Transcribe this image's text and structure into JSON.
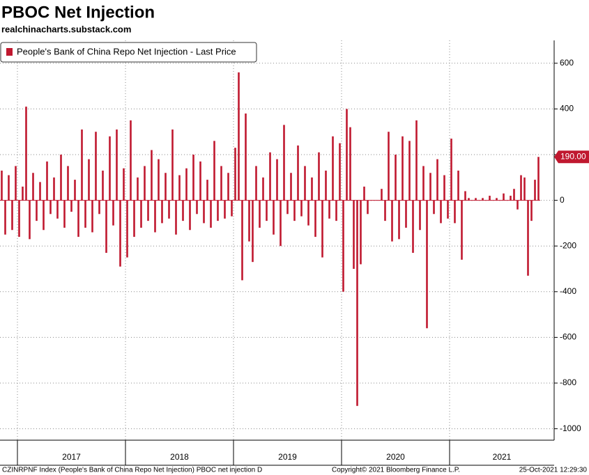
{
  "chart_data": {
    "type": "bar",
    "title": "PBOC Net Injection",
    "subtitle": "realchinacharts.substack.com",
    "series": [
      {
        "name": "People's Bank of China Repo Net Injection - Last Price",
        "color": "#c0182f",
        "values": [
          130,
          -150,
          110,
          -130,
          150,
          -160,
          60,
          410,
          -170,
          120,
          -90,
          80,
          -130,
          170,
          -60,
          100,
          -80,
          200,
          -120,
          150,
          -50,
          90,
          -160,
          310,
          -120,
          180,
          -140,
          300,
          -60,
          130,
          -230,
          280,
          -110,
          310,
          -290,
          140,
          -250,
          350,
          -160,
          100,
          -120,
          150,
          -90,
          220,
          -140,
          180,
          -100,
          120,
          -80,
          310,
          -150,
          110,
          -90,
          140,
          -130,
          200,
          -60,
          170,
          -100,
          90,
          -120,
          260,
          -90,
          150,
          -80,
          120,
          -70,
          230,
          560,
          -350,
          380,
          -180,
          -270,
          150,
          -120,
          100,
          -90,
          210,
          -150,
          180,
          -200,
          330,
          -60,
          120,
          -90,
          240,
          -70,
          150,
          -110,
          100,
          -160,
          210,
          -250,
          130,
          -80,
          280,
          -90,
          250,
          -400,
          400,
          320,
          -300,
          -900,
          -280,
          60,
          -60,
          0,
          0,
          0,
          50,
          -90,
          300,
          -180,
          200,
          -170,
          280,
          -120,
          260,
          -230,
          350,
          -130,
          150,
          -560,
          120,
          -60,
          180,
          -100,
          110,
          -80,
          270,
          -100,
          130,
          -260,
          40,
          10,
          0,
          10,
          0,
          10,
          0,
          20,
          0,
          10,
          0,
          30,
          0,
          20,
          50,
          -40,
          110,
          100,
          -330,
          -90,
          90,
          190
        ],
        "value_labels": [
          null,
          null,
          null,
          null,
          null,
          null,
          null,
          null,
          null,
          null,
          null,
          null,
          null,
          null,
          null,
          null,
          null,
          null,
          null,
          null,
          null,
          null,
          null,
          null,
          null,
          null,
          null,
          null,
          null,
          null,
          null,
          null,
          null,
          null,
          null,
          null,
          null,
          null,
          null,
          null,
          null,
          null,
          null,
          null,
          null,
          null,
          null,
          null,
          null,
          null,
          null,
          null,
          null,
          null,
          null,
          null,
          null,
          null,
          null,
          null,
          null,
          null,
          null,
          null,
          null,
          null,
          null,
          null,
          null,
          null,
          null,
          null,
          null,
          null,
          null,
          null,
          null,
          null,
          null,
          null,
          null,
          null,
          null,
          null,
          null,
          null,
          null,
          null,
          null,
          null,
          null,
          null,
          null,
          null,
          null,
          null,
          null,
          null,
          null,
          null,
          null,
          null,
          null,
          null,
          null,
          null,
          null,
          null,
          null,
          null,
          null,
          null,
          null,
          null,
          null,
          null,
          null,
          null,
          null,
          null,
          null,
          null,
          null,
          null,
          null,
          null,
          null,
          null,
          null,
          null,
          null,
          null,
          null,
          null,
          null,
          null,
          null,
          null,
          null,
          null,
          null,
          null,
          null,
          null,
          null,
          null,
          null,
          null,
          null,
          null,
          null,
          null,
          null,
          null,
          "190.00"
        ]
      }
    ],
    "categories": [
      null,
      null,
      null,
      null,
      null,
      "2017",
      null,
      null,
      null,
      null,
      null,
      null,
      null,
      null,
      null,
      null,
      null,
      null,
      null,
      null,
      null,
      null,
      null,
      null,
      null,
      null,
      null,
      null,
      null,
      null,
      null,
      null,
      null,
      null,
      null,
      null,
      "2018",
      null,
      null,
      null,
      null,
      null,
      null,
      null,
      null,
      null,
      null,
      null,
      null,
      null,
      null,
      null,
      null,
      null,
      null,
      null,
      null,
      null,
      null,
      null,
      null,
      null,
      null,
      null,
      null,
      null,
      null,
      "2019",
      null,
      null,
      null,
      null,
      null,
      null,
      null,
      null,
      null,
      null,
      null,
      null,
      null,
      null,
      null,
      null,
      null,
      null,
      null,
      null,
      null,
      null,
      null,
      null,
      null,
      null,
      null,
      null,
      null,
      null,
      "2020",
      null,
      null,
      null,
      null,
      null,
      null,
      null,
      null,
      null,
      null,
      null,
      null,
      null,
      null,
      null,
      null,
      null,
      null,
      null,
      null,
      null,
      null,
      null,
      null,
      null,
      null,
      null,
      null,
      null,
      null,
      "2021",
      null,
      null,
      null,
      null,
      null,
      null,
      null,
      null,
      null,
      null,
      null,
      null,
      null,
      null,
      null,
      null,
      null,
      null,
      null,
      null,
      null,
      null,
      null,
      null,
      null
    ],
    "ylim": [
      -1050,
      700
    ],
    "yticks": [
      600,
      400,
      200,
      0,
      -200,
      -400,
      -600,
      -800,
      -1000
    ],
    "grid": true,
    "legend": "top-left",
    "footer": [
      "CZINRPNF Index (People's Bank of China Repo Net Injection) PBOC net injection  D",
      "Copyright© 2021 Bloomberg Finance L.P.",
      "25-Oct-2021 12:29:30"
    ]
  }
}
